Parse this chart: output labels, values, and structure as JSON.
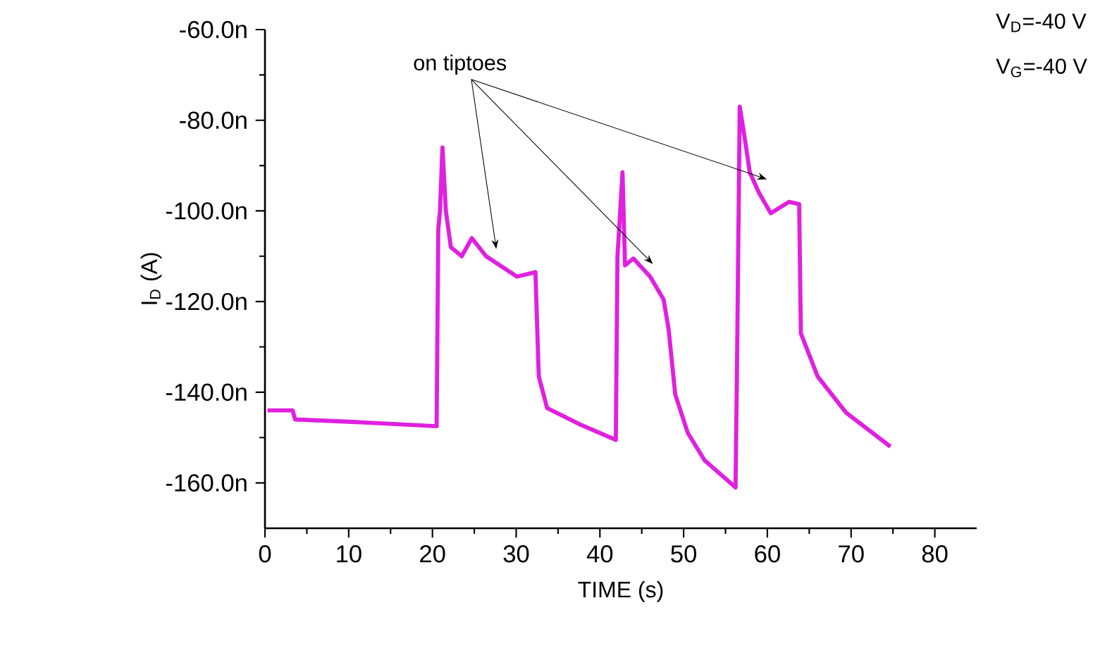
{
  "chart_data": {
    "type": "line",
    "xlabel": "TIME (s)",
    "ylabel": "I$_{D}$ (A)",
    "annotations": [
      "on tiptoes",
      "V$_{D}$=-40 V",
      "V$_{G}$=-40 V"
    ],
    "xlim": [
      0,
      85
    ],
    "ylim": [
      -170,
      -60
    ],
    "xticks": [
      0,
      10,
      20,
      30,
      40,
      50,
      60,
      70,
      80
    ],
    "yticks": [
      {
        "value": -160,
        "label": "-160.0n"
      },
      {
        "value": -140,
        "label": "-140.0n"
      },
      {
        "value": -120,
        "label": "-120.0n"
      },
      {
        "value": -100,
        "label": "-100.0n"
      },
      {
        "value": -80,
        "label": "-80.0n"
      },
      {
        "value": -60,
        "label": "-60.0n"
      }
    ],
    "marker": "none",
    "line_style": "solid",
    "series": [
      {
        "color": "#e020e0",
        "x": [
          0.3,
          3.3,
          3.6,
          10,
          20.5,
          20.7,
          20.9,
          21.2,
          21.6,
          22.2,
          23.5,
          24.7,
          26.4,
          30.1,
          32.3,
          32.7,
          33.7,
          37.5,
          41.9,
          42.1,
          42.3,
          42.7,
          43.0,
          44.0,
          46.0,
          47.6,
          48.2,
          49.0,
          50.5,
          52.5,
          56.2,
          56.4,
          56.7,
          57.3,
          57.9,
          59.0,
          60.4,
          62.6,
          63.8,
          64.0,
          66.0,
          69.4,
          74.7
        ],
        "values": [
          -144,
          -144,
          -146,
          -146.5,
          -147.5,
          -104,
          -100,
          -86,
          -100,
          -108,
          -110,
          -106,
          -110,
          -114.5,
          -113.5,
          -136.5,
          -143.5,
          -147,
          -150.5,
          -110,
          -104,
          -91.5,
          -112,
          -110.5,
          -114.5,
          -119.5,
          -126,
          -140.5,
          -149,
          -155,
          -161,
          -130,
          -77,
          -84,
          -91.5,
          -96,
          -100.5,
          -98,
          -98.5,
          -127,
          -136.5,
          -144.5,
          -152
        ]
      }
    ]
  }
}
